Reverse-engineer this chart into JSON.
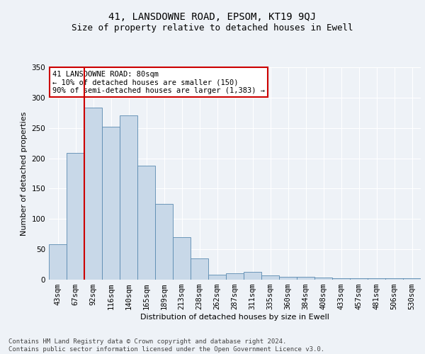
{
  "title": "41, LANSDOWNE ROAD, EPSOM, KT19 9QJ",
  "subtitle": "Size of property relative to detached houses in Ewell",
  "xlabel": "Distribution of detached houses by size in Ewell",
  "ylabel": "Number of detached properties",
  "categories": [
    "43sqm",
    "67sqm",
    "92sqm",
    "116sqm",
    "140sqm",
    "165sqm",
    "189sqm",
    "213sqm",
    "238sqm",
    "262sqm",
    "287sqm",
    "311sqm",
    "335sqm",
    "360sqm",
    "384sqm",
    "408sqm",
    "433sqm",
    "457sqm",
    "481sqm",
    "506sqm",
    "530sqm"
  ],
  "values": [
    58,
    209,
    283,
    252,
    271,
    188,
    125,
    70,
    35,
    8,
    10,
    13,
    7,
    5,
    5,
    3,
    2,
    2,
    2,
    2,
    2
  ],
  "bar_color": "#c8d8e8",
  "bar_edge_color": "#5a8ab0",
  "annotation_text": "41 LANSDOWNE ROAD: 80sqm\n← 10% of detached houses are smaller (150)\n90% of semi-detached houses are larger (1,383) →",
  "annotation_box_color": "#ffffff",
  "annotation_box_edge": "#cc0000",
  "vline_color": "#cc0000",
  "vline_x_index": 1.5,
  "footer": "Contains HM Land Registry data © Crown copyright and database right 2024.\nContains public sector information licensed under the Open Government Licence v3.0.",
  "ylim": [
    0,
    350
  ],
  "yticks": [
    0,
    50,
    100,
    150,
    200,
    250,
    300,
    350
  ],
  "background_color": "#eef2f7",
  "grid_color": "#ffffff",
  "title_fontsize": 10,
  "subtitle_fontsize": 9,
  "axis_label_fontsize": 8,
  "tick_fontsize": 7.5,
  "footer_fontsize": 6.5
}
